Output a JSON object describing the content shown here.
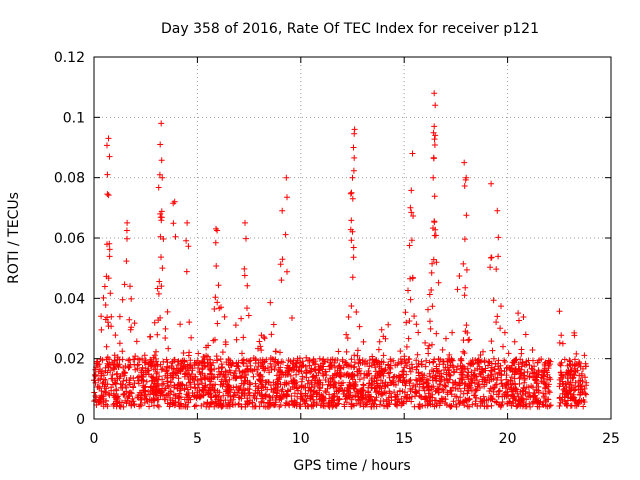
{
  "chart_data": {
    "type": "scatter",
    "title": "Day 358 of 2016, Rate Of TEC Index for receiver p121",
    "xlabel": "GPS time / hours",
    "ylabel": "ROTI / TECUs",
    "xlim": [
      0,
      25
    ],
    "ylim": [
      0,
      0.12
    ],
    "x_ticks": [
      "0",
      "5",
      "10",
      "15",
      "20",
      "25"
    ],
    "x_tick_values": [
      0,
      5,
      10,
      15,
      20,
      25
    ],
    "y_ticks": [
      "0",
      "0.02",
      "0.04",
      "0.06",
      "0.08",
      "0.1",
      "0.12"
    ],
    "y_tick_values": [
      0,
      0.02,
      0.04,
      0.06,
      0.08,
      0.1,
      0.12
    ],
    "grid": true,
    "marker": "+",
    "color": "#ff0000",
    "x_range_data": [
      0,
      23.8
    ],
    "peaks": [
      {
        "x": 0.7,
        "y": 0.093
      },
      {
        "x": 0.75,
        "y": 0.087
      },
      {
        "x": 0.65,
        "y": 0.081
      },
      {
        "x": 3.25,
        "y": 0.098
      },
      {
        "x": 3.2,
        "y": 0.091
      },
      {
        "x": 3.3,
        "y": 0.08
      },
      {
        "x": 3.2,
        "y": 0.068
      },
      {
        "x": 3.9,
        "y": 0.072
      },
      {
        "x": 4.5,
        "y": 0.065
      },
      {
        "x": 9.3,
        "y": 0.08
      },
      {
        "x": 9.1,
        "y": 0.069
      },
      {
        "x": 12.6,
        "y": 0.096
      },
      {
        "x": 12.55,
        "y": 0.09
      },
      {
        "x": 12.5,
        "y": 0.08
      },
      {
        "x": 12.45,
        "y": 0.075
      },
      {
        "x": 15.4,
        "y": 0.088
      },
      {
        "x": 15.3,
        "y": 0.07
      },
      {
        "x": 16.45,
        "y": 0.108
      },
      {
        "x": 16.5,
        "y": 0.104
      },
      {
        "x": 16.45,
        "y": 0.097
      },
      {
        "x": 16.5,
        "y": 0.094
      },
      {
        "x": 16.4,
        "y": 0.08
      },
      {
        "x": 17.9,
        "y": 0.085
      },
      {
        "x": 18.0,
        "y": 0.08
      },
      {
        "x": 19.2,
        "y": 0.078
      },
      {
        "x": 19.5,
        "y": 0.069
      },
      {
        "x": 7.3,
        "y": 0.065
      },
      {
        "x": 1.6,
        "y": 0.065
      },
      {
        "x": 5.9,
        "y": 0.063
      }
    ]
  }
}
